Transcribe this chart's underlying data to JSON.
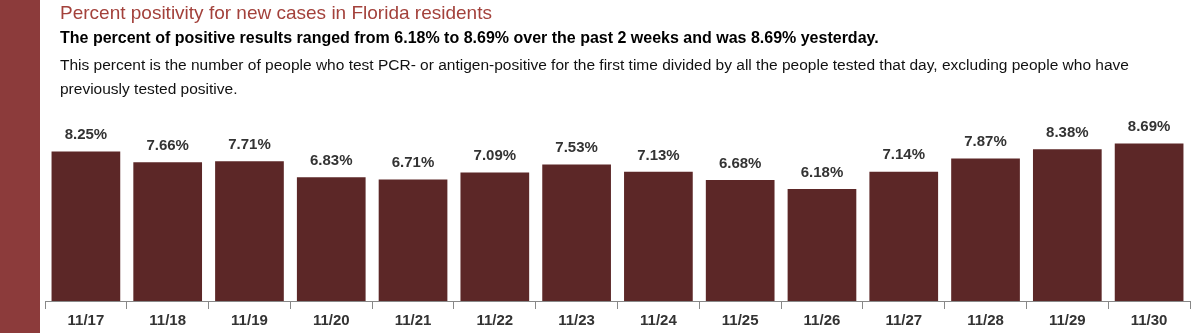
{
  "chart_data": {
    "type": "bar",
    "title": "Percent positivity for new cases in Florida residents",
    "subtitle": "The percent of positive results ranged from 6.18% to 8.69% over the past 2 weeks and was 8.69% yesterday.",
    "annotations": [
      "This percent is the number of people who test PCR- or antigen-positive for the first time divided by all the people tested that day, excluding people who have previously tested positive."
    ],
    "categories": [
      "11/17",
      "11/18",
      "11/19",
      "11/20",
      "11/21",
      "11/22",
      "11/23",
      "11/24",
      "11/25",
      "11/26",
      "11/27",
      "11/28",
      "11/29",
      "11/30"
    ],
    "values": [
      8.25,
      7.66,
      7.71,
      6.83,
      6.71,
      7.09,
      7.53,
      7.13,
      6.68,
      6.18,
      7.14,
      7.87,
      8.38,
      8.69
    ],
    "value_labels": [
      "8.25%",
      "7.66%",
      "7.71%",
      "6.83%",
      "6.71%",
      "7.09%",
      "7.53%",
      "7.13%",
      "6.68%",
      "6.18%",
      "7.14%",
      "7.87%",
      "8.38%",
      "8.69%"
    ],
    "color": "#5c2727"
  }
}
